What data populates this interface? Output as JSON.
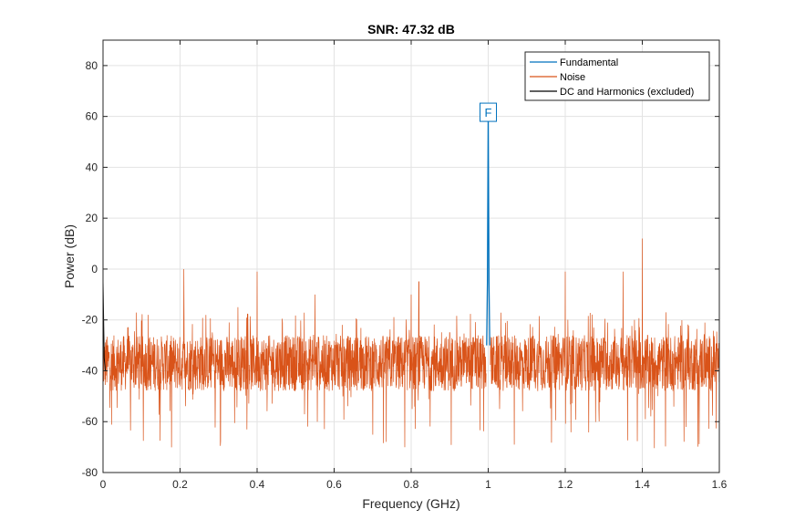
{
  "chart_data": {
    "type": "line",
    "title": "SNR:  47.32 dB",
    "xlabel": "Frequency (GHz)",
    "ylabel": "Power (dB)",
    "xlim": [
      0,
      1.6
    ],
    "ylim": [
      -80,
      90
    ],
    "xticks": [
      0,
      0.2,
      0.4,
      0.6,
      0.8,
      1,
      1.2,
      1.4,
      1.6
    ],
    "xtick_labels": [
      "0",
      "0.2",
      "0.4",
      "0.6",
      "0.8",
      "1",
      "1.2",
      "1.4",
      "1.6"
    ],
    "yticks": [
      -80,
      -60,
      -40,
      -20,
      0,
      20,
      40,
      60,
      80
    ],
    "ytick_labels": [
      "-80",
      "-60",
      "-40",
      "-20",
      "0",
      "20",
      "40",
      "60",
      "80"
    ],
    "grid": true,
    "legend_position": "top-right",
    "noise_floor_db": -37,
    "series": [
      {
        "name": "Fundamental",
        "color": "#0072BD",
        "x": [
          0.996,
          0.998,
          1.0,
          1.002,
          1.004
        ],
        "y": [
          -30,
          -5,
          62,
          -5,
          -30
        ]
      },
      {
        "name": "Noise",
        "color": "#D95319",
        "x": [
          0.0,
          0.21,
          0.35,
          0.4,
          0.55,
          0.8,
          0.82,
          0.9,
          1.2,
          1.35,
          1.4,
          1.6
        ],
        "y": [
          -5,
          0,
          -15,
          -1,
          -10,
          -10,
          -5,
          -25,
          -1,
          -1,
          12,
          -9
        ]
      },
      {
        "name": "DC and Harmonics (excluded)",
        "color": "#000000",
        "x": [
          0.0,
          0.003,
          0.006
        ],
        "y": [
          -5,
          -35,
          -40
        ]
      }
    ],
    "annotations": [
      {
        "text": "F",
        "x": 1.0,
        "y": 62
      }
    ]
  }
}
